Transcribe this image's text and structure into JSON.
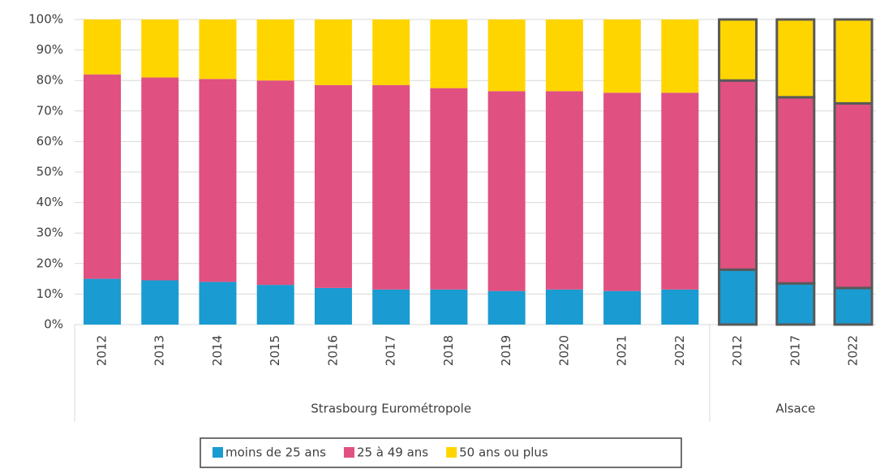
{
  "chart_data": {
    "type": "stacked_bar",
    "groups": [
      {
        "label": "Strasbourg Eurométropole",
        "categories": [
          "2012",
          "2013",
          "2014",
          "2015",
          "2016",
          "2017",
          "2018",
          "2019",
          "2020",
          "2021",
          "2022"
        ]
      },
      {
        "label": "Alsace",
        "categories": [
          "2012",
          "2017",
          "2022"
        ],
        "outline": "#595959"
      }
    ],
    "series": [
      {
        "name": "moins de 25 ans",
        "color": "#1a9bd1",
        "values": [
          15,
          14.5,
          14,
          13,
          12,
          11.5,
          11.5,
          11,
          11.5,
          11,
          11.5,
          18,
          13.5,
          12
        ]
      },
      {
        "name": "25 à 49 ans",
        "color": "#e05080",
        "values": [
          67,
          66.5,
          66.5,
          67,
          66.5,
          67,
          66,
          65.5,
          65,
          65,
          64.5,
          62,
          61,
          60.5
        ]
      },
      {
        "name": "50 ans ou plus",
        "color": "#ffd500",
        "values": [
          18,
          19,
          19.5,
          20,
          21.5,
          21.5,
          22.5,
          23.5,
          23.5,
          24,
          24,
          20,
          25.5,
          27.5
        ]
      }
    ],
    "ylim": [
      0,
      100
    ],
    "yticks": [
      {
        "value": 0,
        "label": "0%"
      },
      {
        "value": 10,
        "label": "10%"
      },
      {
        "value": 20,
        "label": "20%"
      },
      {
        "value": 30,
        "label": "30%"
      },
      {
        "value": 40,
        "label": "40%"
      },
      {
        "value": 50,
        "label": "50%"
      },
      {
        "value": 60,
        "label": "60%"
      },
      {
        "value": 70,
        "label": "70%"
      },
      {
        "value": 80,
        "label": "80%"
      },
      {
        "value": 90,
        "label": "90%"
      },
      {
        "value": 100,
        "label": "100%"
      }
    ],
    "grid": true,
    "legend": "bottom"
  }
}
